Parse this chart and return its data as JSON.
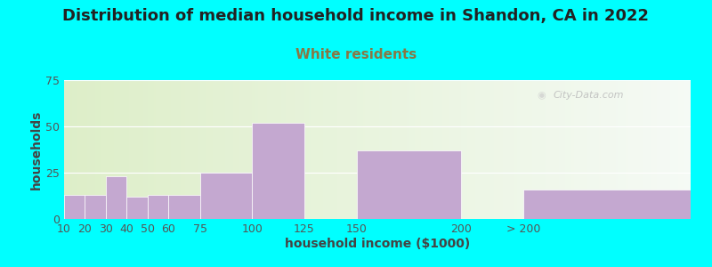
{
  "title": "Distribution of median household income in Shandon, CA in 2022",
  "subtitle": "White residents",
  "xlabel": "household income ($1000)",
  "ylabel": "households",
  "background_outer": "#00FFFF",
  "bar_color": "#C4A8D0",
  "bar_edge_color": "#FFFFFF",
  "categories": [
    "10",
    "20",
    "30",
    "40",
    "50",
    "60",
    "75",
    "100",
    "125",
    "150",
    "200",
    "> 200"
  ],
  "values": [
    13,
    13,
    23,
    12,
    13,
    13,
    25,
    52,
    0,
    37,
    0,
    16
  ],
  "ylim": [
    0,
    75
  ],
  "yticks": [
    0,
    25,
    50,
    75
  ],
  "title_fontsize": 13,
  "subtitle_fontsize": 11,
  "subtitle_color": "#888855",
  "axis_label_fontsize": 10,
  "tick_fontsize": 9,
  "watermark": "City-Data.com",
  "title_color": "#222222"
}
